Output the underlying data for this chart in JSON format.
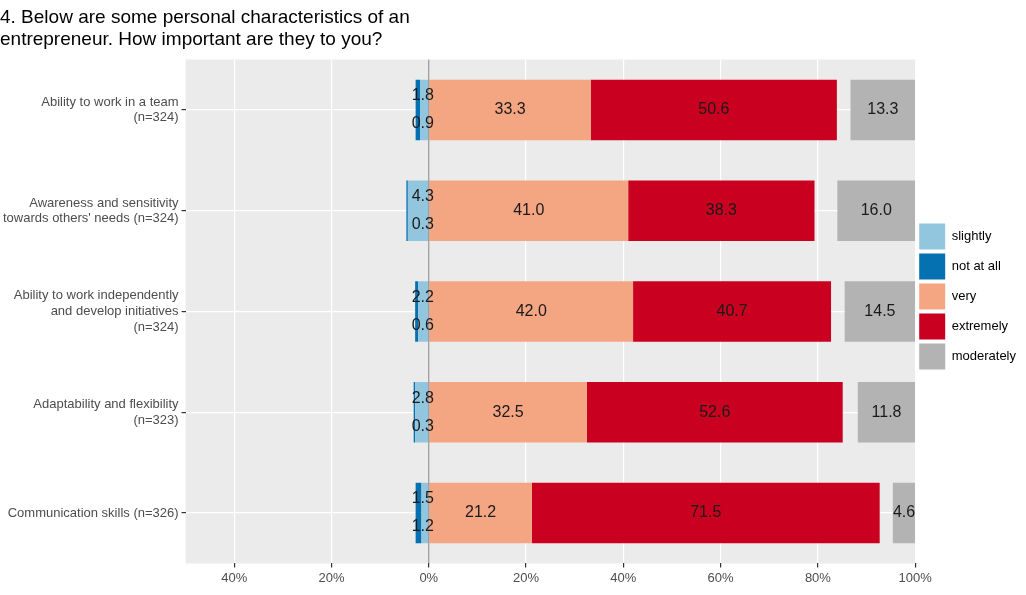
{
  "chart_data": {
    "type": "bar",
    "orientation": "horizontal",
    "title": "4. Below are some personal characteristics of an\nentrepreneur. How important are they to you?",
    "categories": [
      "Ability to work in a team\n(n=324)",
      "Awareness and sensitivity\ntowards others' needs (n=324)",
      "Ability to work independently\nand develop initiatives\n(n=324)",
      "Adaptability and flexibility\n(n=323)",
      "Communication skills (n=326)"
    ],
    "series": [
      {
        "name": "slightly",
        "color": "#92c5de",
        "values": [
          -1.8,
          -4.3,
          -2.2,
          -2.8,
          -1.5
        ],
        "base": [
          0,
          0,
          0,
          0,
          0
        ],
        "value_labels": [
          "1.8",
          "4.3",
          "2.2",
          "2.8",
          "1.5"
        ]
      },
      {
        "name": "not at all",
        "color": "#0571b0",
        "values": [
          -0.9,
          -0.3,
          -0.6,
          -0.3,
          -1.2
        ],
        "base": [
          -1.8,
          -4.3,
          -2.2,
          -2.8,
          -1.5
        ],
        "value_labels": [
          "0.9",
          "0.3",
          "0.6",
          "0.3",
          "1.2"
        ]
      },
      {
        "name": "very",
        "color": "#f4a582",
        "values": [
          33.3,
          41.0,
          42.0,
          32.5,
          21.2
        ],
        "base": [
          0,
          0,
          0,
          0,
          0
        ],
        "value_labels": [
          "33.3",
          "41.0",
          "42.0",
          "32.5",
          "21.2"
        ]
      },
      {
        "name": "extremely",
        "color": "#ca0020",
        "values": [
          50.6,
          38.3,
          40.7,
          52.6,
          71.5
        ],
        "base": [
          33.3,
          41.0,
          42.0,
          32.5,
          21.2
        ],
        "value_labels": [
          "50.6",
          "38.3",
          "40.7",
          "52.6",
          "71.5"
        ]
      },
      {
        "name": "moderately",
        "color": "#b3b3b3",
        "values": [
          13.3,
          16.0,
          14.5,
          11.8,
          4.6
        ],
        "base": [
          86.7,
          84.0,
          85.5,
          88.2,
          95.4
        ],
        "value_labels": [
          "13.3",
          "16.0",
          "14.5",
          "11.8",
          "4.6"
        ]
      }
    ],
    "xlim": [
      -50,
      100
    ],
    "xticks": [
      {
        "value": -40,
        "label": "40%"
      },
      {
        "value": -20,
        "label": "20%"
      },
      {
        "value": 0,
        "label": "0%"
      },
      {
        "value": 20,
        "label": "20%"
      },
      {
        "value": 40,
        "label": "40%"
      },
      {
        "value": 60,
        "label": "60%"
      },
      {
        "value": 80,
        "label": "80%"
      },
      {
        "value": 100,
        "label": "100%"
      }
    ],
    "ref_lines": [
      {
        "axis": "x",
        "value": 0,
        "color": "#808080"
      }
    ],
    "grid": true,
    "legend": "right"
  }
}
